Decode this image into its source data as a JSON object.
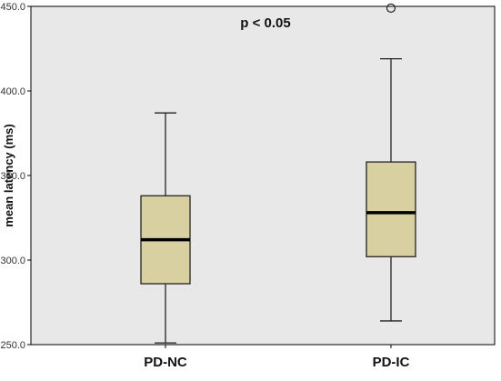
{
  "chart_data": {
    "type": "boxplot",
    "ylabel": "mean latency (ms)",
    "xlabel": "",
    "annotation": "p < 0.05",
    "ylim": [
      250,
      450
    ],
    "yticks": [
      250,
      300,
      350,
      400,
      450
    ],
    "ytick_labels": [
      "250.0",
      "300.0",
      "350.0",
      "400.0",
      "450.0"
    ],
    "grid": false,
    "categories": [
      "PD-NC",
      "PD-IC"
    ],
    "boxes": [
      {
        "category": "PD-NC",
        "min": 251,
        "q1": 286,
        "median": 312,
        "q3": 338,
        "max": 387,
        "outliers": []
      },
      {
        "category": "PD-IC",
        "min": 264,
        "q1": 302,
        "median": 328,
        "q3": 358,
        "max": 419,
        "outliers": [
          449
        ]
      }
    ],
    "colors": {
      "plot_background": "#e8e8e8",
      "box_fill": "#d8d0a0",
      "box_stroke": "#222222",
      "median": "#000000"
    }
  }
}
